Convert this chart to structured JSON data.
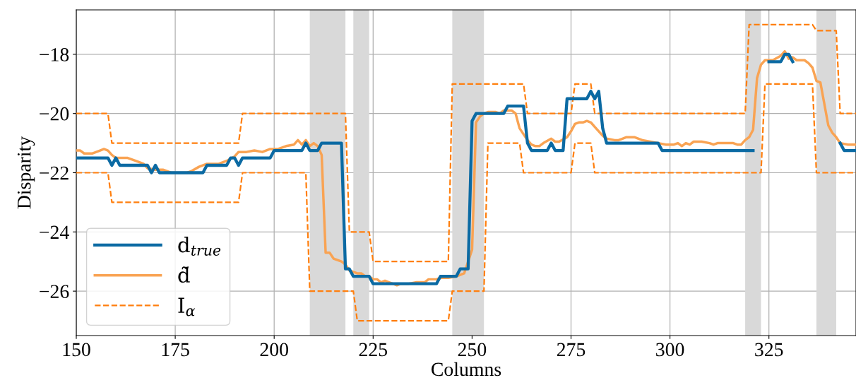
{
  "chart_data": {
    "type": "line",
    "xlabel": "Columns",
    "ylabel": "Disparity",
    "xlim": [
      150,
      347
    ],
    "ylim": [
      -27.5,
      -16.5
    ],
    "xticks": [
      150,
      175,
      200,
      225,
      250,
      275,
      300,
      325
    ],
    "yticks": [
      -26,
      -24,
      -22,
      -20,
      -18
    ],
    "grid": true,
    "legend": "bottom left",
    "bands": [
      {
        "axis": "x",
        "from": 209,
        "to": 218,
        "color": "#d9d9d9"
      },
      {
        "axis": "x",
        "from": 220,
        "to": 224,
        "color": "#d9d9d9"
      },
      {
        "axis": "x",
        "from": 245,
        "to": 253,
        "color": "#d9d9d9"
      },
      {
        "axis": "x",
        "from": 319,
        "to": 323,
        "color": "#d9d9d9"
      },
      {
        "axis": "x",
        "from": 337,
        "to": 342,
        "color": "#d9d9d9"
      }
    ],
    "series": [
      {
        "name": "d$_{true}$",
        "color": "#0b6aa3",
        "line_style": "solid",
        "x": [
          150,
          158,
          159,
          160,
          161,
          168,
          169,
          170,
          171,
          182,
          183,
          188,
          189,
          190,
          191,
          192,
          199,
          200,
          207,
          208,
          209,
          211,
          212,
          217,
          218,
          219,
          220,
          224,
          225,
          241,
          242,
          246,
          247,
          249,
          250,
          251,
          258,
          259,
          263,
          264,
          265,
          269,
          270,
          271,
          273,
          274,
          279,
          280,
          281,
          282,
          283,
          284,
          297,
          298,
          321,
          322,
          325,
          328,
          329,
          330,
          331,
          332,
          343,
          344,
          347
        ],
        "values": [
          -21.5,
          -21.5,
          -21.75,
          -21.5,
          -21.75,
          -21.75,
          -22,
          -21.75,
          -22,
          -22,
          -21.75,
          -21.75,
          -21.5,
          -21.5,
          -21.75,
          -21.5,
          -21.5,
          -21.25,
          -21.25,
          -21,
          -21.25,
          -21.25,
          -21,
          -21,
          -25.25,
          -25.25,
          -25.5,
          -25.5,
          -25.75,
          -25.75,
          -25.5,
          -25.5,
          -25.25,
          -25.25,
          -20.25,
          -20,
          -20,
          -19.75,
          -19.75,
          -21,
          -21.25,
          -21.25,
          -21,
          -21.25,
          -21.25,
          -19.5,
          -19.5,
          -19.25,
          -19.5,
          -19.25,
          -20.5,
          -21,
          -21,
          -21.25,
          -21.25,
          null,
          -18.25,
          -18.25,
          -18,
          -18,
          -18.25,
          null,
          -21,
          -21.25,
          -21.25
        ]
      },
      {
        "name": "d̃",
        "color": "#f9a353",
        "line_style": "solid",
        "x": [
          150,
          151,
          152,
          154,
          156,
          157,
          158,
          159,
          160,
          163,
          165,
          167,
          168,
          170,
          172,
          174,
          176,
          178,
          179,
          181,
          183,
          186,
          188,
          190,
          191,
          193,
          195,
          197,
          199,
          201,
          203,
          205,
          206,
          207,
          208,
          209,
          210,
          211,
          212,
          213,
          214,
          215,
          216,
          217,
          218,
          219,
          220,
          221,
          222,
          223,
          224,
          225,
          226,
          227,
          228,
          229,
          230,
          231,
          232,
          234,
          236,
          238,
          239,
          241,
          242,
          244,
          246,
          247,
          248,
          249,
          250,
          251,
          252,
          253,
          254,
          256,
          257,
          258,
          260,
          261,
          262,
          264,
          265,
          266,
          267,
          268,
          270,
          271,
          272,
          274,
          275,
          276,
          277,
          278,
          279,
          280,
          281,
          282,
          283,
          284,
          286,
          287,
          288,
          289,
          291,
          293,
          295,
          297,
          299,
          301,
          302,
          303,
          304,
          305,
          306,
          308,
          310,
          311,
          312,
          314,
          316,
          317,
          318,
          319,
          320,
          321,
          322,
          323,
          324,
          326,
          328,
          329,
          330,
          331,
          332,
          334,
          335,
          336,
          337,
          338,
          340,
          341,
          342,
          343,
          345,
          347
        ],
        "values": [
          -21.25,
          -21.25,
          -21.35,
          -21.35,
          -21.25,
          -21.2,
          -21.25,
          -21.4,
          -21.5,
          -21.5,
          -21.6,
          -21.7,
          -21.85,
          -21.9,
          -21.9,
          -22,
          -22,
          -22,
          -21.95,
          -21.8,
          -21.7,
          -21.7,
          -21.6,
          -21.45,
          -21.3,
          -21.3,
          -21.25,
          -21.3,
          -21.2,
          -21.2,
          -21.1,
          -21.05,
          -20.9,
          -21.05,
          -20.9,
          -21.1,
          -21,
          -21.1,
          -21.4,
          -24.7,
          -24.7,
          -24.9,
          -24.95,
          -25,
          -25.1,
          -25.3,
          -25.35,
          -25.4,
          -25.4,
          -25.5,
          -25.5,
          -25.6,
          -25.6,
          -25.7,
          -25.65,
          -25.7,
          -25.75,
          -25.8,
          -25.75,
          -25.75,
          -25.7,
          -25.7,
          -25.6,
          -25.6,
          -25.55,
          -25.55,
          -25.5,
          -25.45,
          -25.4,
          -25,
          -24.6,
          -20.3,
          -20.1,
          -20,
          -19.95,
          -19.95,
          -20,
          -19.9,
          -19.9,
          -20,
          -20.5,
          -20.9,
          -21.05,
          -21.1,
          -21.1,
          -21,
          -20.85,
          -20.95,
          -20.95,
          -20.8,
          -20.6,
          -20.35,
          -20.3,
          -20.3,
          -20.25,
          -20.3,
          -20.45,
          -20.6,
          -20.75,
          -20.85,
          -20.9,
          -20.9,
          -20.85,
          -20.8,
          -20.8,
          -20.9,
          -20.95,
          -21,
          -21.05,
          -21.05,
          -21,
          -21.1,
          -21,
          -21.05,
          -20.95,
          -20.95,
          -21,
          -21.05,
          -21,
          -21,
          -21,
          -21.05,
          -21.05,
          -20.9,
          -20.8,
          -20.55,
          -18.8,
          -18.35,
          -18.2,
          -18.2,
          -18.05,
          -17.9,
          -18.15,
          -18.1,
          -18.2,
          -18.2,
          -18.3,
          -18.45,
          -18.9,
          -18.95,
          -20.4,
          -20.65,
          -20.8,
          -21,
          -21.05,
          -21.05
        ]
      },
      {
        "name": "I$_{α}$",
        "color": "#ff7f0e",
        "line_style": "dashed",
        "x": [
          150,
          158,
          159,
          191,
          192,
          218,
          219,
          224,
          225,
          244,
          245,
          263,
          264,
          275,
          276,
          280,
          281,
          319,
          320,
          336,
          337,
          342,
          343,
          347
        ],
        "values": [
          -20,
          -20,
          -21,
          -21,
          -20,
          -20,
          -24,
          -24,
          -25,
          -25,
          -19,
          -19,
          -20,
          -20,
          -19,
          -19,
          -20,
          -20,
          -17,
          -17,
          -17.2,
          -17.2,
          -20,
          -20
        ]
      },
      {
        "color": "#ff7f0e",
        "line_style": "dashed",
        "x": [
          150,
          158,
          159,
          191,
          192,
          208,
          209,
          220,
          221,
          244,
          245,
          253,
          254,
          262,
          263,
          275,
          276,
          280,
          281,
          323,
          324,
          336,
          337,
          347
        ],
        "values": [
          -22,
          -22,
          -23,
          -23,
          -22,
          -22,
          -26,
          -26,
          -27,
          -27,
          -26,
          -26,
          -21,
          -21,
          -22,
          -22,
          -21,
          -21,
          -22,
          -22,
          -19,
          -19,
          -22,
          -22
        ]
      }
    ]
  }
}
